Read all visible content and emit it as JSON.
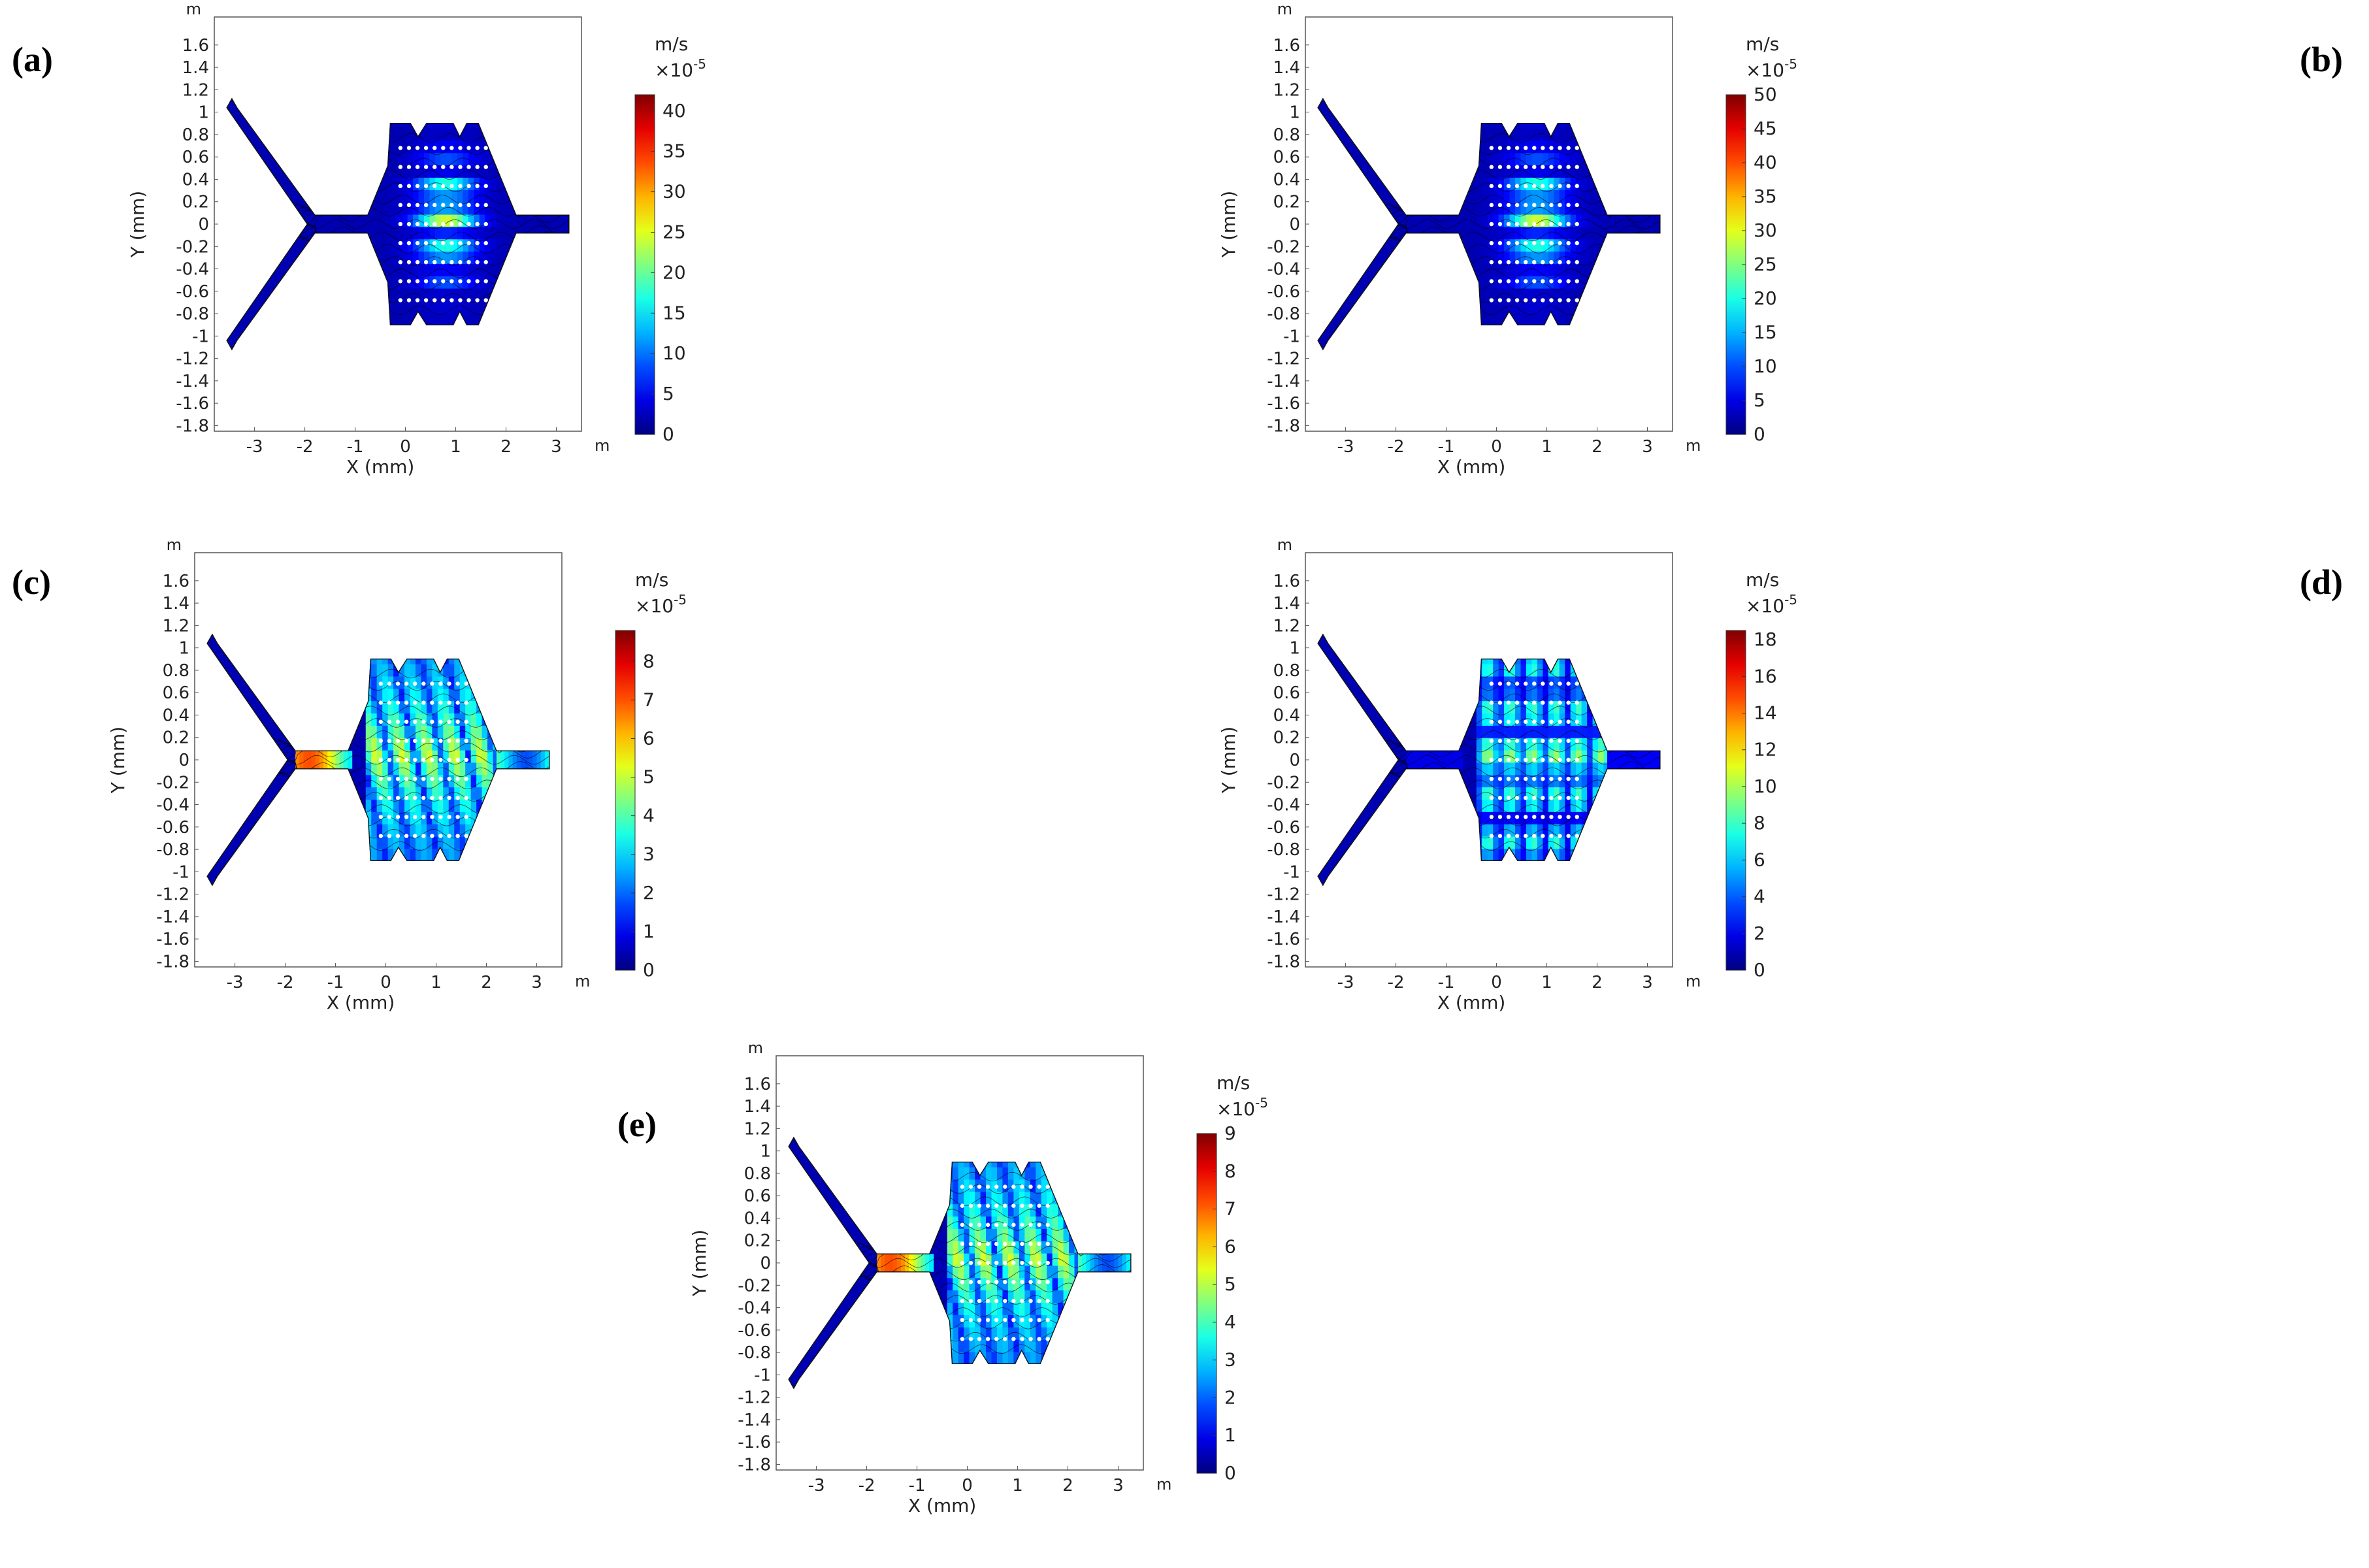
{
  "figure": {
    "panels": [
      {
        "label": "(a)",
        "max": 42,
        "ticks": [
          "0",
          "5",
          "10",
          "15",
          "20",
          "25",
          "30",
          "35",
          "40"
        ],
        "tickvals": [
          0,
          5,
          10,
          15,
          20,
          25,
          30,
          35,
          40
        ],
        "field": "low"
      },
      {
        "label": "(b)",
        "max": 50,
        "ticks": [
          "0",
          "5",
          "10",
          "15",
          "20",
          "25",
          "30",
          "35",
          "40",
          "45",
          "50"
        ],
        "tickvals": [
          0,
          5,
          10,
          15,
          20,
          25,
          30,
          35,
          40,
          45,
          50
        ],
        "field": "low"
      },
      {
        "label": "(c)",
        "max": 8.8,
        "ticks": [
          "0",
          "1",
          "2",
          "3",
          "4",
          "5",
          "6",
          "7",
          "8"
        ],
        "tickvals": [
          0,
          1,
          2,
          3,
          4,
          5,
          6,
          7,
          8
        ],
        "field": "high"
      },
      {
        "label": "(d)",
        "max": 18.5,
        "ticks": [
          "0",
          "2",
          "4",
          "6",
          "8",
          "10",
          "12",
          "14",
          "16",
          "18"
        ],
        "tickvals": [
          0,
          2,
          4,
          6,
          8,
          10,
          12,
          14,
          16,
          18
        ],
        "field": "mid"
      },
      {
        "label": "(e)",
        "max": 9,
        "ticks": [
          "0",
          "1",
          "2",
          "3",
          "4",
          "5",
          "6",
          "7",
          "8",
          "9"
        ],
        "tickvals": [
          0,
          1,
          2,
          3,
          4,
          5,
          6,
          7,
          8,
          9
        ],
        "field": "high"
      }
    ],
    "x_label": "X (mm)",
    "y_label": "Y (mm)",
    "axis_unit": "m",
    "x_ticks": [
      "-3",
      "-2",
      "-1",
      "0",
      "1",
      "2",
      "3"
    ],
    "x_tickvals": [
      -3,
      -2,
      -1,
      0,
      1,
      2,
      3
    ],
    "y_ticks": [
      "1.6",
      "1.4",
      "1.2",
      "1",
      "0.8",
      "0.6",
      "0.4",
      "0.2",
      "0",
      "-0.2",
      "-0.4",
      "-0.6",
      "-0.8",
      "-1",
      "-1.2",
      "-1.4",
      "-1.6",
      "-1.8"
    ],
    "y_tickvals": [
      1.6,
      1.4,
      1.2,
      1,
      0.8,
      0.6,
      0.4,
      0.2,
      0,
      -0.2,
      -0.4,
      -0.6,
      -0.8,
      -1,
      -1.2,
      -1.4,
      -1.6,
      -1.8
    ],
    "x_range": [
      -3.8,
      3.5
    ],
    "y_range": [
      -1.85,
      1.85
    ],
    "colorbar_unit": "m/s",
    "colorbar_scale_base": "×10",
    "colorbar_scale_exp": "-5",
    "colormap": [
      "#00007f",
      "#0000ff",
      "#007fff",
      "#00ffff",
      "#7fff7f",
      "#ffff00",
      "#ff7f00",
      "#ff0000",
      "#7f0000"
    ]
  }
}
